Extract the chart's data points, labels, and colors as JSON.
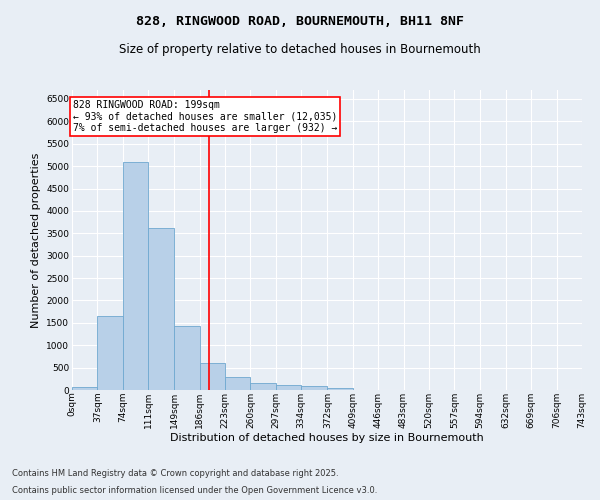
{
  "title_line1": "828, RINGWOOD ROAD, BOURNEMOUTH, BH11 8NF",
  "title_line2": "Size of property relative to detached houses in Bournemouth",
  "xlabel": "Distribution of detached houses by size in Bournemouth",
  "ylabel": "Number of detached properties",
  "bar_color": "#b8d0e8",
  "bar_edge_color": "#6fa8d0",
  "background_color": "#e8eef5",
  "grid_color": "#ffffff",
  "annotation_line_color": "red",
  "annotation_box_color": "red",
  "annotation_text": "828 RINGWOOD ROAD: 199sqm\n← 93% of detached houses are smaller (12,035)\n7% of semi-detached houses are larger (932) →",
  "property_sqm": 199,
  "bin_edges": [
    0,
    37,
    74,
    111,
    149,
    186,
    223,
    260,
    297,
    334,
    372,
    409,
    446,
    483,
    520,
    557,
    594,
    632,
    669,
    706,
    743
  ],
  "bin_labels": [
    "0sqm",
    "37sqm",
    "74sqm",
    "111sqm",
    "149sqm",
    "186sqm",
    "223sqm",
    "260sqm",
    "297sqm",
    "334sqm",
    "372sqm",
    "409sqm",
    "446sqm",
    "483sqm",
    "520sqm",
    "557sqm",
    "594sqm",
    "632sqm",
    "669sqm",
    "706sqm",
    "743sqm"
  ],
  "bar_heights": [
    60,
    1650,
    5100,
    3620,
    1420,
    610,
    300,
    155,
    120,
    90,
    40,
    10,
    5,
    2,
    1,
    0,
    0,
    0,
    0,
    0
  ],
  "ylim": [
    0,
    6700
  ],
  "yticks": [
    0,
    500,
    1000,
    1500,
    2000,
    2500,
    3000,
    3500,
    4000,
    4500,
    5000,
    5500,
    6000,
    6500
  ],
  "footnote1": "Contains HM Land Registry data © Crown copyright and database right 2025.",
  "footnote2": "Contains public sector information licensed under the Open Government Licence v3.0.",
  "title_fontsize": 9.5,
  "subtitle_fontsize": 8.5,
  "axis_label_fontsize": 8,
  "tick_fontsize": 6.5,
  "annotation_fontsize": 7,
  "footnote_fontsize": 6
}
